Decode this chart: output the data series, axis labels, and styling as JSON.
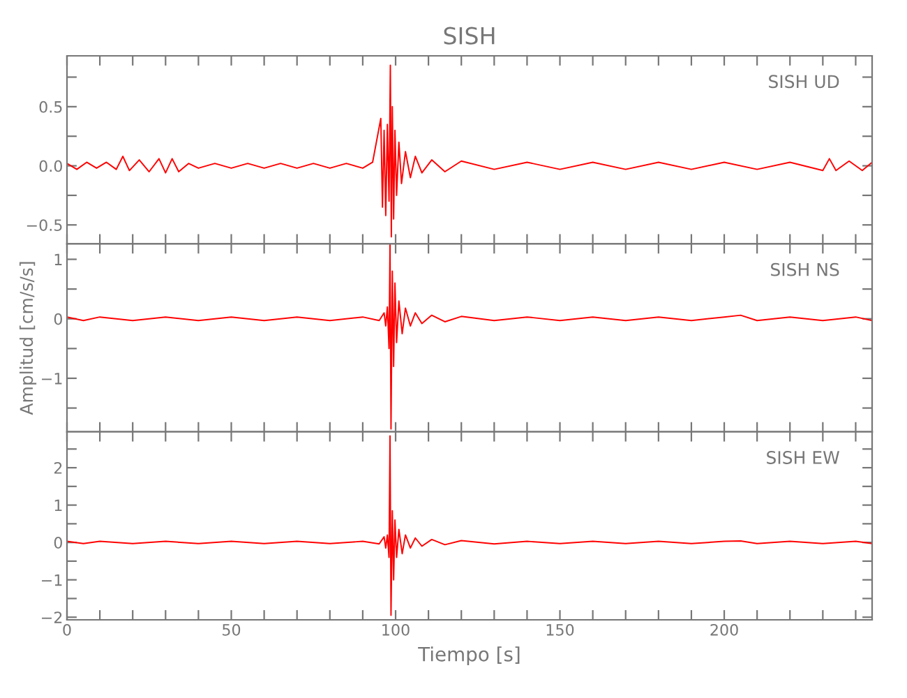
{
  "chart_data": [
    {
      "type": "line",
      "title": "SISH",
      "annotations": [
        "SISH UD"
      ],
      "xlim": [
        0,
        245
      ],
      "ylim": [
        -0.66,
        0.93
      ],
      "tick_labels": "y",
      "xticks": [
        {
          "value": 0,
          "label": null
        },
        {
          "value": 10,
          "label": null
        },
        {
          "value": 20,
          "label": null
        },
        {
          "value": 30,
          "label": null
        },
        {
          "value": 40,
          "label": null
        },
        {
          "value": 50,
          "label": null
        },
        {
          "value": 60,
          "label": null
        },
        {
          "value": 70,
          "label": null
        },
        {
          "value": 80,
          "label": null
        },
        {
          "value": 90,
          "label": null
        },
        {
          "value": 100,
          "label": null
        },
        {
          "value": 110,
          "label": null
        },
        {
          "value": 120,
          "label": null
        },
        {
          "value": 130,
          "label": null
        },
        {
          "value": 140,
          "label": null
        },
        {
          "value": 150,
          "label": null
        },
        {
          "value": 160,
          "label": null
        },
        {
          "value": 170,
          "label": null
        },
        {
          "value": 180,
          "label": null
        },
        {
          "value": 190,
          "label": null
        },
        {
          "value": 200,
          "label": null
        },
        {
          "value": 210,
          "label": null
        },
        {
          "value": 220,
          "label": null
        },
        {
          "value": 230,
          "label": null
        },
        {
          "value": 240,
          "label": null
        }
      ],
      "yticks": [
        {
          "value": -0.5,
          "label": "−0.5"
        },
        {
          "value": -0.25,
          "label": null
        },
        {
          "value": 0,
          "label": "0.0"
        },
        {
          "value": 0.25,
          "label": null
        },
        {
          "value": 0.5,
          "label": "0.5"
        },
        {
          "value": 0.75,
          "label": null
        }
      ],
      "series": [
        {
          "color": "#ff0000",
          "x": [
            0,
            3,
            6,
            9,
            12,
            15,
            17,
            19,
            22,
            25,
            28,
            30,
            32,
            34,
            37,
            40,
            45,
            50,
            55,
            60,
            65,
            70,
            75,
            80,
            85,
            90,
            93,
            95.5,
            96,
            96.5,
            97,
            97.5,
            98,
            98.4,
            98.7,
            99,
            99.4,
            99.8,
            100.3,
            101,
            101.8,
            103,
            104.5,
            106,
            108,
            111,
            115,
            120,
            130,
            140,
            150,
            160,
            170,
            180,
            190,
            200,
            210,
            220,
            230,
            232,
            234,
            238,
            242,
            245
          ],
          "values": [
            0.02,
            -0.03,
            0.03,
            -0.02,
            0.03,
            -0.03,
            0.08,
            -0.04,
            0.05,
            -0.05,
            0.06,
            -0.06,
            0.06,
            -0.05,
            0.02,
            -0.02,
            0.02,
            -0.02,
            0.02,
            -0.02,
            0.02,
            -0.02,
            0.02,
            -0.02,
            0.02,
            -0.02,
            0.03,
            0.4,
            -0.35,
            0.3,
            -0.42,
            0.35,
            -0.3,
            0.85,
            -0.6,
            0.5,
            -0.45,
            0.3,
            -0.25,
            0.2,
            -0.15,
            0.12,
            -0.1,
            0.08,
            -0.06,
            0.05,
            -0.05,
            0.04,
            -0.03,
            0.03,
            -0.03,
            0.03,
            -0.03,
            0.03,
            -0.03,
            0.03,
            -0.03,
            0.03,
            -0.04,
            0.06,
            -0.04,
            0.04,
            -0.04,
            0.03
          ]
        }
      ]
    },
    {
      "type": "line",
      "ylabel": "Amplitud [cm/s/s]",
      "annotations": [
        "SISH NS"
      ],
      "xlim": [
        0,
        245
      ],
      "ylim": [
        -1.9,
        1.26
      ],
      "tick_labels": "y",
      "xticks": [
        {
          "value": 0,
          "label": null
        },
        {
          "value": 10,
          "label": null
        },
        {
          "value": 20,
          "label": null
        },
        {
          "value": 30,
          "label": null
        },
        {
          "value": 40,
          "label": null
        },
        {
          "value": 50,
          "label": null
        },
        {
          "value": 60,
          "label": null
        },
        {
          "value": 70,
          "label": null
        },
        {
          "value": 80,
          "label": null
        },
        {
          "value": 90,
          "label": null
        },
        {
          "value": 100,
          "label": null
        },
        {
          "value": 110,
          "label": null
        },
        {
          "value": 120,
          "label": null
        },
        {
          "value": 130,
          "label": null
        },
        {
          "value": 140,
          "label": null
        },
        {
          "value": 150,
          "label": null
        },
        {
          "value": 160,
          "label": null
        },
        {
          "value": 170,
          "label": null
        },
        {
          "value": 180,
          "label": null
        },
        {
          "value": 190,
          "label": null
        },
        {
          "value": 200,
          "label": null
        },
        {
          "value": 210,
          "label": null
        },
        {
          "value": 220,
          "label": null
        },
        {
          "value": 230,
          "label": null
        },
        {
          "value": 240,
          "label": null
        }
      ],
      "yticks": [
        {
          "value": -1.5,
          "label": null
        },
        {
          "value": -1,
          "label": "−1"
        },
        {
          "value": -0.5,
          "label": null
        },
        0,
        {
          "value": 0.5,
          "label": null
        },
        1
      ],
      "series": [
        {
          "color": "#ff0000",
          "x": [
            0,
            5,
            10,
            20,
            30,
            40,
            50,
            60,
            70,
            80,
            90,
            95,
            96.5,
            97,
            97.5,
            98,
            98.3,
            98.6,
            99,
            99.4,
            99.8,
            100.3,
            101,
            102,
            103,
            104.5,
            106,
            108,
            111,
            115,
            120,
            130,
            140,
            150,
            160,
            170,
            180,
            190,
            200,
            205,
            210,
            220,
            230,
            240,
            245
          ],
          "values": [
            0.03,
            -0.03,
            0.03,
            -0.03,
            0.03,
            -0.03,
            0.03,
            -0.03,
            0.03,
            -0.03,
            0.03,
            -0.03,
            0.1,
            -0.12,
            0.2,
            -0.5,
            1.25,
            -1.85,
            0.8,
            -0.8,
            0.6,
            -0.4,
            0.3,
            -0.25,
            0.18,
            -0.12,
            0.1,
            -0.08,
            0.06,
            -0.05,
            0.04,
            -0.03,
            0.03,
            -0.03,
            0.03,
            -0.03,
            0.03,
            -0.03,
            0.03,
            0.06,
            -0.03,
            0.03,
            -0.03,
            0.03,
            -0.03
          ]
        }
      ]
    },
    {
      "type": "line",
      "xlabel": "Tiempo [s]",
      "annotations": [
        "SISH EW"
      ],
      "xlim": [
        0,
        245
      ],
      "ylim": [
        -2.07,
        2.96
      ],
      "xticks": [
        0,
        {
          "value": 10,
          "label": null
        },
        {
          "value": 20,
          "label": null
        },
        {
          "value": 30,
          "label": null
        },
        {
          "value": 40,
          "label": null
        },
        50,
        {
          "value": 60,
          "label": null
        },
        {
          "value": 70,
          "label": null
        },
        {
          "value": 80,
          "label": null
        },
        {
          "value": 90,
          "label": null
        },
        100,
        {
          "value": 110,
          "label": null
        },
        {
          "value": 120,
          "label": null
        },
        {
          "value": 130,
          "label": null
        },
        {
          "value": 140,
          "label": null
        },
        150,
        {
          "value": 160,
          "label": null
        },
        {
          "value": 170,
          "label": null
        },
        {
          "value": 180,
          "label": null
        },
        {
          "value": 190,
          "label": null
        },
        200,
        {
          "value": 210,
          "label": null
        },
        {
          "value": 220,
          "label": null
        },
        {
          "value": 230,
          "label": null
        },
        {
          "value": 240,
          "label": null
        }
      ],
      "yticks": [
        {
          "value": -2,
          "label": "−2"
        },
        {
          "value": -1.5,
          "label": null
        },
        {
          "value": -1,
          "label": "−1"
        },
        {
          "value": -0.5,
          "label": null
        },
        0,
        {
          "value": 0.5,
          "label": null
        },
        1,
        {
          "value": 1.5,
          "label": null
        },
        2,
        {
          "value": 2.5,
          "label": null
        }
      ],
      "series": [
        {
          "color": "#ff0000",
          "x": [
            0,
            5,
            10,
            20,
            30,
            40,
            50,
            60,
            70,
            80,
            90,
            95,
            96.5,
            97,
            97.5,
            98,
            98.3,
            98.6,
            99,
            99.4,
            99.8,
            100.3,
            101,
            102,
            103,
            104.5,
            106,
            108,
            111,
            115,
            120,
            130,
            140,
            150,
            160,
            170,
            180,
            190,
            200,
            205,
            210,
            220,
            230,
            240,
            245
          ],
          "values": [
            0.03,
            -0.03,
            0.03,
            -0.03,
            0.03,
            -0.03,
            0.03,
            -0.03,
            0.03,
            -0.03,
            0.03,
            -0.04,
            0.15,
            -0.15,
            0.2,
            -0.4,
            2.85,
            -1.95,
            0.85,
            -1.0,
            0.6,
            -0.4,
            0.35,
            -0.3,
            0.2,
            -0.15,
            0.12,
            -0.1,
            0.08,
            -0.06,
            0.05,
            -0.04,
            0.03,
            -0.03,
            0.03,
            -0.03,
            0.03,
            -0.03,
            0.03,
            0.04,
            -0.03,
            0.03,
            -0.03,
            0.03,
            -0.03
          ]
        }
      ]
    }
  ]
}
